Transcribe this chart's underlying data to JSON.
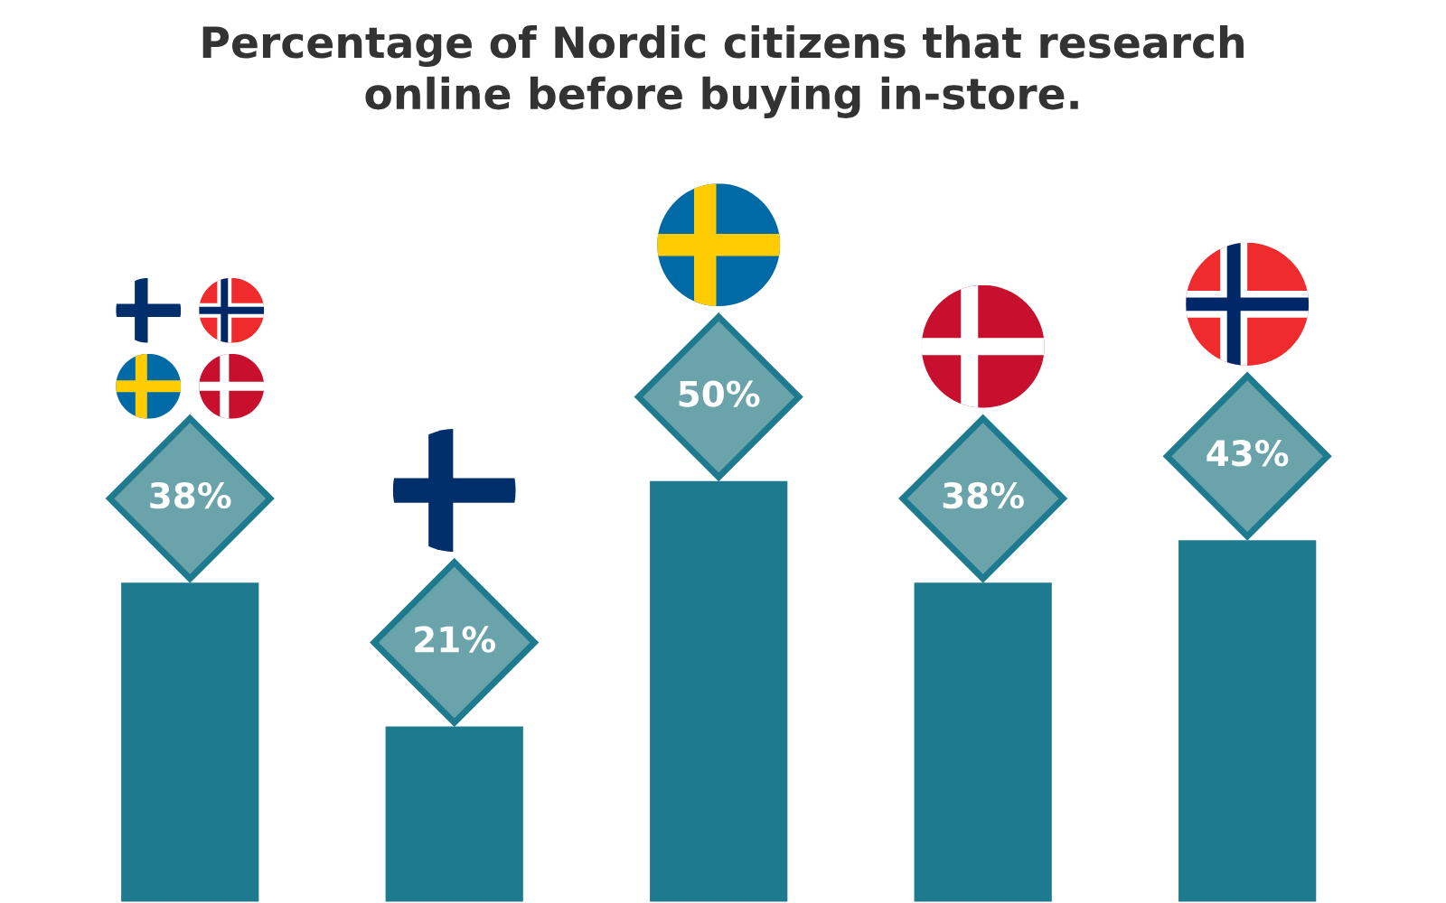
{
  "chart_data": {
    "type": "bar",
    "title": "Percentage of Nordic citizens that research online before buying in-store.",
    "categories": [
      null,
      null,
      null,
      null,
      null
    ],
    "values": [
      38,
      21,
      50,
      38,
      43
    ],
    "color": "#1e7b8f",
    "value_labels": [
      "38%",
      "21%",
      "50%",
      "38%",
      "43%"
    ],
    "tick_labels": false
  }
}
